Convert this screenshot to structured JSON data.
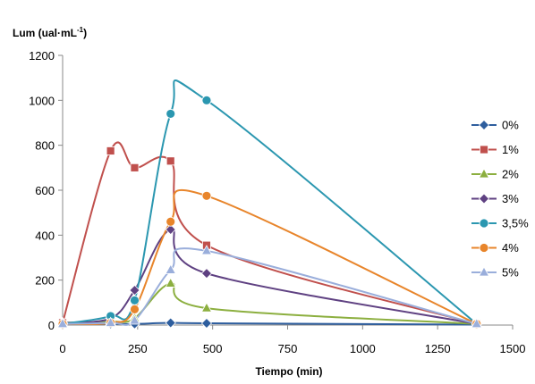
{
  "chart_data": {
    "type": "line",
    "title": "",
    "ylabel": "Lum (ual·mL",
    "ylabel_sup": "-1",
    "ylabel_close": ")",
    "xlabel": "Tiempo (min)",
    "xlim": [
      0,
      1500
    ],
    "ylim": [
      0,
      1200
    ],
    "x_ticks": [
      0,
      250,
      500,
      750,
      1000,
      1250,
      1500
    ],
    "y_ticks": [
      0,
      200,
      400,
      600,
      800,
      1000,
      1200
    ],
    "grid": false,
    "legend_position": "right",
    "series": [
      {
        "name": "0%",
        "color": "#2E5E9E",
        "marker": "diamond",
        "x": [
          0,
          160,
          240,
          360,
          480,
          1380
        ],
        "y": [
          5,
          5,
          5,
          10,
          8,
          2
        ]
      },
      {
        "name": "1%",
        "color": "#C0504D",
        "marker": "square",
        "x": [
          0,
          160,
          240,
          360,
          480,
          1380
        ],
        "y": [
          10,
          775,
          700,
          730,
          355,
          5
        ]
      },
      {
        "name": "2%",
        "color": "#8CAF3F",
        "marker": "triangle",
        "x": [
          0,
          160,
          240,
          360,
          480,
          1380
        ],
        "y": [
          10,
          15,
          30,
          185,
          75,
          5
        ]
      },
      {
        "name": "3%",
        "color": "#5F4182",
        "marker": "diamond",
        "x": [
          0,
          160,
          240,
          360,
          480,
          1380
        ],
        "y": [
          10,
          30,
          155,
          425,
          230,
          5
        ]
      },
      {
        "name": "3,5%",
        "color": "#2B97B0",
        "marker": "circle",
        "x": [
          0,
          160,
          240,
          360,
          480,
          1380
        ],
        "y": [
          5,
          40,
          110,
          940,
          1000,
          5
        ]
      },
      {
        "name": "4%",
        "color": "#E8852B",
        "marker": "circle",
        "x": [
          0,
          160,
          240,
          360,
          480,
          1380
        ],
        "y": [
          5,
          10,
          70,
          460,
          575,
          5
        ]
      },
      {
        "name": "5%",
        "color": "#9AAEDB",
        "marker": "triangle",
        "x": [
          0,
          160,
          240,
          360,
          480,
          1380
        ],
        "y": [
          5,
          10,
          20,
          245,
          330,
          5
        ]
      }
    ]
  }
}
